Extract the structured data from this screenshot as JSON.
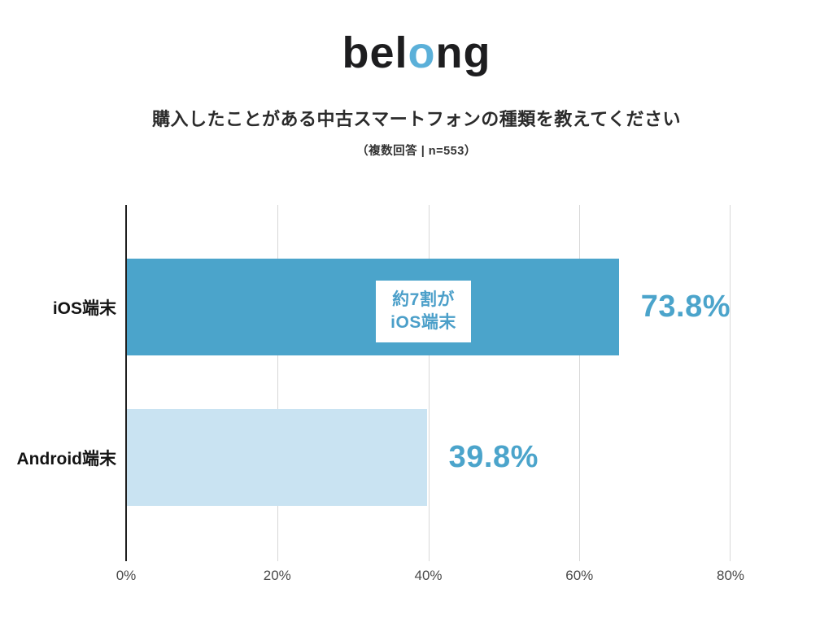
{
  "logo": {
    "part1": "bel",
    "part2": "o",
    "part3": "ng"
  },
  "header": {
    "title": "購入したことがある中古スマートフォンの種類を教えてください",
    "subtitle": "（複数回答 | n=553）"
  },
  "annotation": {
    "line1": "約7割が",
    "line2": "iOS端末"
  },
  "colors": {
    "bar_primary": "#4ba4cb",
    "bar_secondary": "#c9e3f2",
    "value_text": "#4ba4cb",
    "annotation_text": "#4b9fc9",
    "logo_black": "#1d1d1f",
    "logo_accent": "#5bb0d9",
    "gridline": "#d8d8d8",
    "axis_line": "#1f1f1f"
  },
  "chart_data": {
    "type": "bar",
    "orientation": "horizontal",
    "title": "購入したことがある中古スマートフォンの種類を教えてください",
    "subtitle": "（複数回答 | n=553）",
    "categories": [
      "iOS端末",
      "Android端末"
    ],
    "values": [
      73.8,
      39.8
    ],
    "value_labels": [
      "73.8%",
      "39.8%"
    ],
    "series_colors": [
      "#4ba4cb",
      "#c9e3f2"
    ],
    "xlabel": "",
    "ylabel": "",
    "xlim": [
      0,
      80
    ],
    "x_ticks_values": [
      0,
      20,
      40,
      60,
      80
    ],
    "x_ticks": [
      "0%",
      "20%",
      "40%",
      "60%",
      "80%"
    ],
    "grid": true,
    "legend": false,
    "annotation": "約7割がiOS端末"
  }
}
